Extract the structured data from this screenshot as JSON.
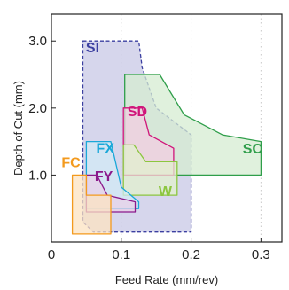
{
  "chart_data": {
    "type": "area",
    "xlabel": "Feed Rate (mm/rev)",
    "ylabel": "Depth of Cut (mm)",
    "xlim": [
      0,
      0.33
    ],
    "ylim": [
      0,
      3.4
    ],
    "x_ticks": [
      0,
      0.1,
      0.2,
      0.3
    ],
    "x_tick_labels": [
      "0",
      "0.1",
      "0.2",
      "0.3"
    ],
    "y_ticks": [
      1.0,
      2.0,
      3.0
    ],
    "y_tick_labels": [
      "1.0",
      "2.0",
      "3.0"
    ],
    "grid": "dotted vertical at x ticks",
    "series": [
      {
        "name": "SI",
        "color": "#3b3fa0",
        "fill": "#c8c8e6",
        "style": "dashed",
        "label_at": [
          0.059,
          2.83
        ],
        "points": [
          [
            0.045,
            3.0
          ],
          [
            0.125,
            3.0
          ],
          [
            0.13,
            2.6
          ],
          [
            0.15,
            2.0
          ],
          [
            0.2,
            1.6
          ],
          [
            0.2,
            0.15
          ],
          [
            0.06,
            0.15
          ],
          [
            0.045,
            0.3
          ]
        ]
      },
      {
        "name": "SC",
        "color": "#2f9e4a",
        "fill": "#d5ecd2",
        "style": "solid",
        "label_at": [
          0.288,
          1.32
        ],
        "points": [
          [
            0.105,
            2.5
          ],
          [
            0.155,
            2.5
          ],
          [
            0.19,
            1.9
          ],
          [
            0.245,
            1.6
          ],
          [
            0.3,
            1.5
          ],
          [
            0.3,
            1.0
          ],
          [
            0.105,
            1.0
          ]
        ]
      },
      {
        "name": "SD",
        "color": "#d0157a",
        "fill": "#f2cde1",
        "style": "solid",
        "label_at": [
          0.123,
          1.88
        ],
        "points": [
          [
            0.103,
            2.0
          ],
          [
            0.13,
            2.0
          ],
          [
            0.14,
            1.6
          ],
          [
            0.175,
            1.4
          ],
          [
            0.175,
            1.0
          ],
          [
            0.103,
            1.0
          ]
        ]
      },
      {
        "name": "W",
        "color": "#8cc63f",
        "fill": "#e2f0cf",
        "style": "solid",
        "label_at": [
          0.163,
          0.69
        ],
        "points": [
          [
            0.103,
            1.45
          ],
          [
            0.118,
            1.45
          ],
          [
            0.135,
            1.2
          ],
          [
            0.18,
            1.2
          ],
          [
            0.18,
            0.7
          ],
          [
            0.103,
            0.7
          ]
        ]
      },
      {
        "name": "FX",
        "color": "#1aa8d8",
        "fill": "#d2eaf5",
        "style": "solid",
        "label_at": [
          0.077,
          1.33
        ],
        "points": [
          [
            0.05,
            1.5
          ],
          [
            0.085,
            1.5
          ],
          [
            0.1,
            0.82
          ],
          [
            0.125,
            0.6
          ],
          [
            0.125,
            0.5
          ],
          [
            0.05,
            0.5
          ]
        ]
      },
      {
        "name": "FY",
        "color": "#8b1a8b",
        "fill": "#e8d0e8",
        "style": "solid",
        "label_at": [
          0.075,
          0.91
        ],
        "points": [
          [
            0.05,
            1.0
          ],
          [
            0.065,
            1.0
          ],
          [
            0.08,
            0.7
          ],
          [
            0.12,
            0.6
          ],
          [
            0.12,
            0.45
          ],
          [
            0.05,
            0.45
          ]
        ]
      },
      {
        "name": "FC",
        "color": "#f39a1e",
        "fill": "#fce3c2",
        "style": "solid",
        "label_at": [
          0.028,
          1.12
        ],
        "points": [
          [
            0.03,
            1.0
          ],
          [
            0.05,
            1.0
          ],
          [
            0.05,
            0.7
          ],
          [
            0.085,
            0.7
          ],
          [
            0.085,
            0.12
          ],
          [
            0.03,
            0.12
          ]
        ]
      }
    ]
  }
}
